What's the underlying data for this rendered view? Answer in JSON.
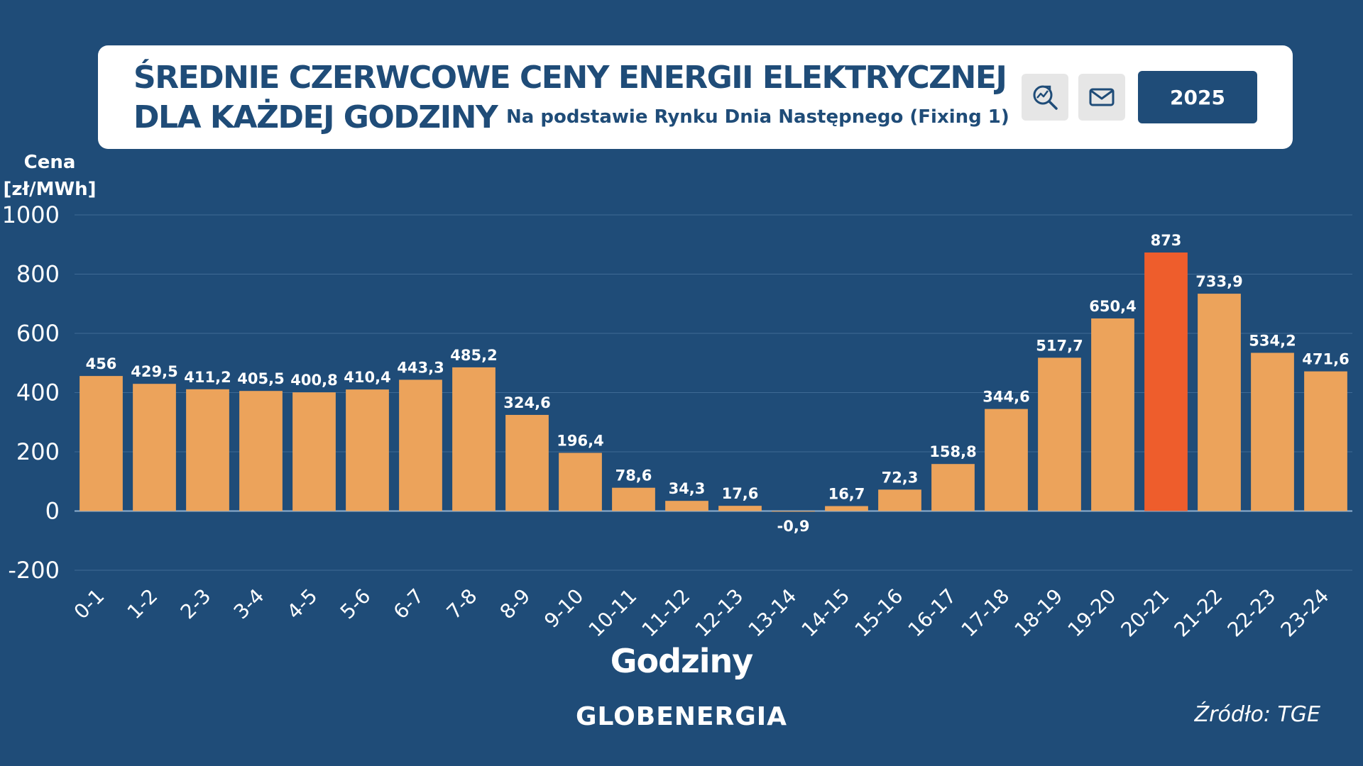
{
  "header": {
    "title_line1": "ŚREDNIE CZERWCOWE CENY ENERGII ELEKTRYCZNEJ",
    "title_line2": "DLA KAŻDEJ GODZINY",
    "subtitle": "Na podstawie Rynku Dnia Następnego (Fixing 1)",
    "year_button": "2025",
    "icons": [
      "search-analytics-icon",
      "mail-icon"
    ]
  },
  "footer": {
    "logo": "GLOBENERGIA",
    "source": "Źródło: TGE"
  },
  "colors": {
    "background": "#1f4c78",
    "bar": "#eca35b",
    "bar_highlight": "#ee5d2c",
    "text": "#ffffff"
  },
  "chart_data": {
    "type": "bar",
    "title": "ŚREDNIE CZERWCOWE CENY ENERGII ELEKTRYCZNEJ DLA KAŻDEJ GODZINY",
    "subtitle": "Na podstawie Rynku Dnia Następnego (Fixing 1)",
    "xlabel": "Godziny",
    "ylabel": "Cena [zł/MWh]",
    "ylabel_lines": [
      "Cena",
      "[zł/MWh]"
    ],
    "ylim": [
      -200,
      1000
    ],
    "yticks": [
      1000,
      800,
      600,
      400,
      200,
      0,
      -200
    ],
    "grid": true,
    "legend": "none",
    "highlight_category": "20-21",
    "categories": [
      "0-1",
      "1-2",
      "2-3",
      "3-4",
      "4-5",
      "5-6",
      "6-7",
      "7-8",
      "8-9",
      "9-10",
      "10-11",
      "11-12",
      "12-13",
      "13-14",
      "14-15",
      "15-16",
      "16-17",
      "17-18",
      "18-19",
      "19-20",
      "20-21",
      "21-22",
      "22-23",
      "23-24"
    ],
    "values": [
      456,
      429.5,
      411.2,
      405.5,
      400.8,
      410.4,
      443.3,
      485.2,
      324.6,
      196.4,
      78.6,
      34.3,
      17.6,
      -0.9,
      16.7,
      72.3,
      158.8,
      344.6,
      517.7,
      650.4,
      873,
      733.9,
      534.2,
      471.6
    ],
    "value_labels": [
      "456",
      "429,5",
      "411,2",
      "405,5",
      "400,8",
      "410,4",
      "443,3",
      "485,2",
      "324,6",
      "196,4",
      "78,6",
      "34,3",
      "17,6",
      "-0,9",
      "16,7",
      "72,3",
      "158,8",
      "344,6",
      "517,7",
      "650,4",
      "873",
      "733,9",
      "534,2",
      "471,6"
    ]
  }
}
